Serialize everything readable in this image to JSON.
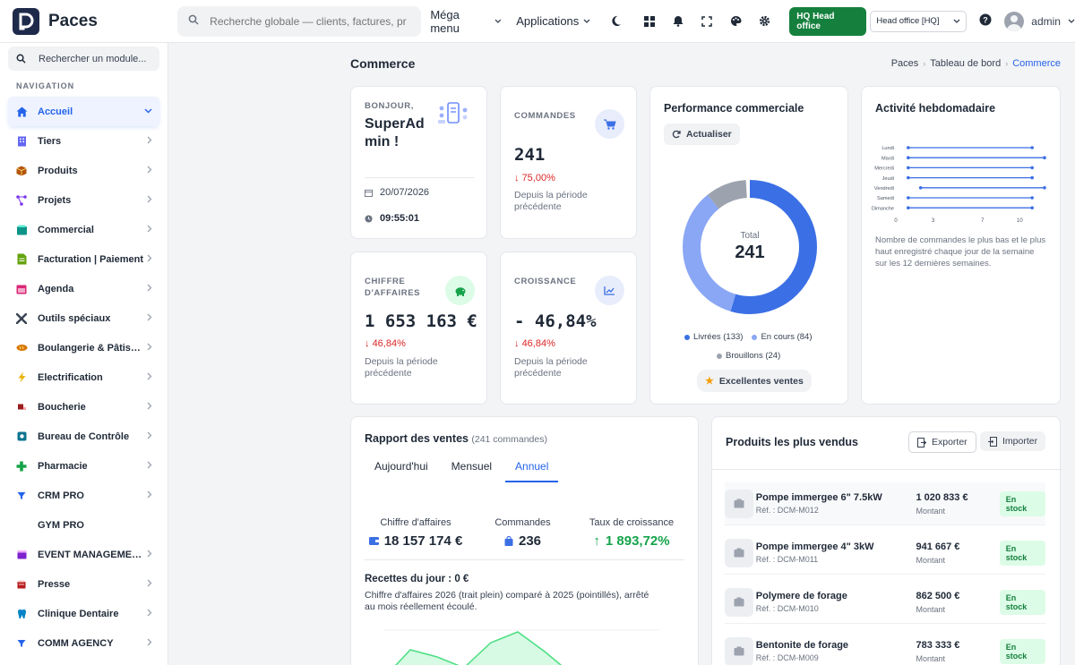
{
  "app": {
    "name": "Paces"
  },
  "topbar": {
    "search_placeholder": "Recherche globale — clients, factures, produits...",
    "mega_menu": "Méga menu",
    "applications": "Applications",
    "hq_badge": "HQ Head office",
    "hq_select": "Head office [HQ]",
    "user": "admin"
  },
  "sidebar": {
    "search_label": "Rechercher un module...",
    "section": "NAVIGATION",
    "items": [
      {
        "label": "Accueil",
        "icon": "home-icon",
        "color": "#2563eb"
      },
      {
        "label": "Tiers",
        "icon": "building-icon",
        "color": "#6366f1"
      },
      {
        "label": "Produits",
        "icon": "box-icon",
        "color": "#b45309"
      },
      {
        "label": "Projets",
        "icon": "project-icon",
        "color": "#7c3aed"
      },
      {
        "label": "Commercial",
        "icon": "shop-icon",
        "color": "#0d9488"
      },
      {
        "label": "Facturation | Paiement",
        "icon": "invoice-icon",
        "color": "#65a30d"
      },
      {
        "label": "Agenda",
        "icon": "calendar-icon",
        "color": "#db2777"
      },
      {
        "label": "Outils spéciaux",
        "icon": "tools-icon",
        "color": "#374151"
      },
      {
        "label": "Boulangerie & Pâtisserie",
        "icon": "bread-icon",
        "color": "#d97706"
      },
      {
        "label": "Electrification",
        "icon": "bolt-icon",
        "color": "#eab308"
      },
      {
        "label": "Boucherie",
        "icon": "meat-icon",
        "color": "#991b1b"
      },
      {
        "label": "Bureau de Contrôle",
        "icon": "control-icon",
        "color": "#0e7490"
      },
      {
        "label": "Pharmacie",
        "icon": "cross-icon",
        "color": "#16a34a"
      },
      {
        "label": "CRM PRO",
        "icon": "funnel-icon",
        "color": "#2563eb"
      },
      {
        "label": "GYM PRO",
        "icon": "",
        "color": ""
      },
      {
        "label": "EVENT MANAGEMENT",
        "icon": "event-icon",
        "color": "#7e22ce"
      },
      {
        "label": "Presse",
        "icon": "press-icon",
        "color": "#b91c1c"
      },
      {
        "label": "Clinique Dentaire",
        "icon": "tooth-icon",
        "color": "#0284c7"
      },
      {
        "label": "COMM AGENCY",
        "icon": "funnel-icon",
        "color": "#2563eb"
      }
    ]
  },
  "page": {
    "title": "Commerce",
    "breadcrumb": [
      "Paces",
      "Tableau de bord",
      "Commerce"
    ]
  },
  "welcome": {
    "greeting": "BONJOUR,",
    "name_line1": "SuperAd",
    "name_line2": "min !",
    "date": "20/07/2026",
    "time": "09:55:01"
  },
  "kpis": {
    "orders": {
      "label": "COMMANDES",
      "value": "241",
      "change": "75,00%",
      "note": "Depuis la période précédente"
    },
    "revenue": {
      "label_line1": "CHIFFRE",
      "label_line2": "D'AFFAIRES",
      "value": "1 653 163 €",
      "change": "46,84%",
      "note": "Depuis la période précédente"
    },
    "growth": {
      "label": "CROISSANCE",
      "value": "- 46,84%",
      "change": "46,84%",
      "note": "Depuis la période précédente"
    }
  },
  "performance": {
    "title": "Performance commerciale",
    "refresh": "Actualiser",
    "total_label": "Total",
    "total_value": "241",
    "legend": [
      "Livrées (133)",
      "En cours (84)",
      "Brouillons (24)"
    ],
    "badge": "Excellentes ventes",
    "colors": {
      "livrees": "#3b6fe5",
      "en_cours": "#8aa7f5",
      "brouillons": "#9ca3af"
    }
  },
  "weekly": {
    "title": "Activité hebdomadaire",
    "days": [
      "Lundi",
      "Mardi",
      "Mercredi",
      "Jeudi",
      "Vendredi",
      "Samedi",
      "Dimanche"
    ],
    "ticks": [
      "0",
      "3",
      "7",
      "10"
    ],
    "note": "Nombre de commandes le plus bas et le plus haut enregistré chaque jour de la semaine sur les 12 dernières semaines."
  },
  "chart_data": {
    "type": "bar",
    "title": "Activité hebdomadaire",
    "categories": [
      "Lundi",
      "Mardi",
      "Mercredi",
      "Jeudi",
      "Vendredi",
      "Samedi",
      "Dimanche"
    ],
    "series": [
      {
        "values_min": [
          1,
          1,
          1,
          1,
          2,
          1,
          1
        ],
        "values_max": [
          11,
          12,
          11,
          11,
          12,
          11,
          11
        ]
      }
    ],
    "xlim": [
      0,
      12
    ],
    "xticks": [
      0,
      3,
      7,
      10
    ]
  },
  "sales_report": {
    "title": "Rapport des ventes",
    "count": "(241 commandes)",
    "tabs": [
      "Aujourd'hui",
      "Mensuel",
      "Annuel"
    ],
    "stats": [
      {
        "label": "Chiffre d'affaires",
        "value": "18 157 174 €"
      },
      {
        "label": "Commandes",
        "value": "236"
      },
      {
        "label": "Taux de croissance",
        "value": "1 893,72%"
      }
    ],
    "daily_title": "Recettes du jour : 0 €",
    "daily_note": "Chiffre d'affaires 2026 (trait plein) comparé à 2025 (pointillés), arrêté au mois réellement écoulé."
  },
  "top_products": {
    "title": "Produits les plus vendus",
    "export": "Exporter",
    "import": "Importer",
    "amount_label": "Montant",
    "rows": [
      {
        "name": "Pompe immergee 6\" 7.5kW",
        "ref": "Réf. : DCM-M012",
        "amount": "1 020 833 €",
        "status": "En stock"
      },
      {
        "name": "Pompe immergee 4\" 3kW",
        "ref": "Réf. : DCM-M011",
        "amount": "941 667 €",
        "status": "En stock"
      },
      {
        "name": "Polymere de forage",
        "ref": "Réf. : DCM-M010",
        "amount": "862 500 €",
        "status": "En stock"
      },
      {
        "name": "Bentonite de forage",
        "ref": "Réf. : DCM-M009",
        "amount": "783 333 €",
        "status": "En stock"
      }
    ]
  }
}
